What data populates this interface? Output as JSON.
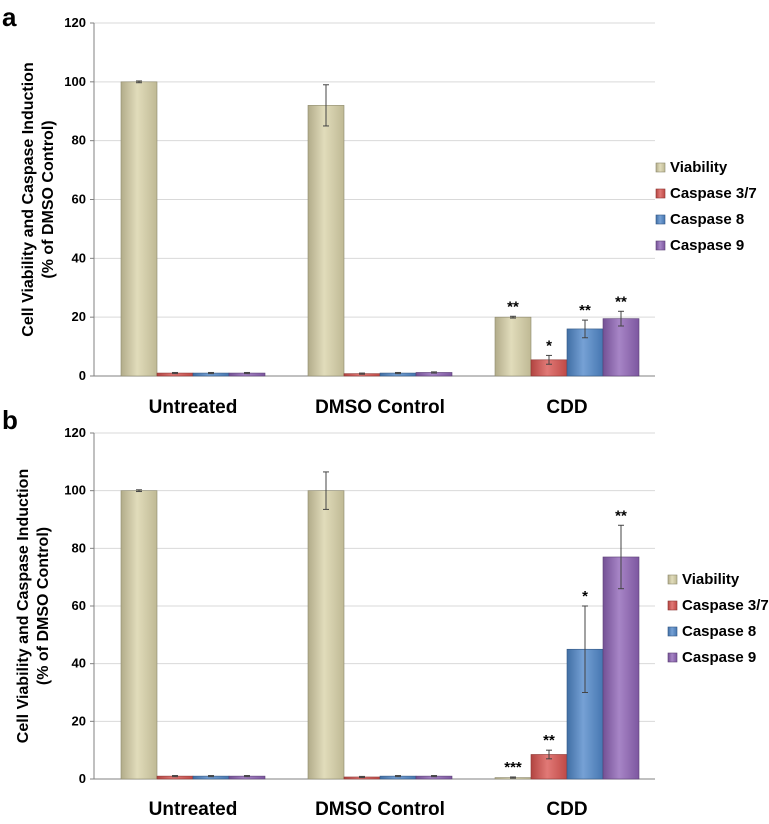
{
  "colors": {
    "viability": "#d9d2a8",
    "caspase37": "#d9534f",
    "caspase8": "#4f87c9",
    "caspase9": "#8e63b6"
  },
  "chart_data": [
    {
      "panel": "a",
      "type": "bar",
      "ylabel_line1": "Cell Viability and Caspase Induction",
      "ylabel_line2": "(% of DMSO Control)",
      "ylim": [
        0,
        120
      ],
      "yticks": [
        "0",
        "20",
        "40",
        "60",
        "80",
        "100",
        "120"
      ],
      "grid": true,
      "legend_position": "right",
      "categories": [
        "Untreated",
        "DMSO Control",
        "CDD"
      ],
      "series": [
        {
          "name": "Viability",
          "values": [
            100,
            92,
            20
          ],
          "errors": [
            0.3,
            7,
            0.3
          ],
          "sig": [
            "",
            "",
            "**"
          ]
        },
        {
          "name": "Caspase 3/7",
          "values": [
            1,
            0.8,
            5.5
          ],
          "errors": [
            0.2,
            0.2,
            1.5
          ],
          "sig": [
            "",
            "",
            "*"
          ]
        },
        {
          "name": "Caspase 8",
          "values": [
            1,
            1,
            16
          ],
          "errors": [
            0.2,
            0.2,
            3
          ],
          "sig": [
            "",
            "",
            "**"
          ]
        },
        {
          "name": "Caspase 9",
          "values": [
            1,
            1.2,
            19.5
          ],
          "errors": [
            0.2,
            0.2,
            2.5
          ],
          "sig": [
            "",
            "",
            "**"
          ]
        }
      ]
    },
    {
      "panel": "b",
      "type": "bar",
      "ylabel_line1": "Cell Viability and Caspase Induction",
      "ylabel_line2": "(% of DMSO Control)",
      "ylim": [
        0,
        120
      ],
      "yticks": [
        "0",
        "20",
        "40",
        "60",
        "80",
        "100",
        "120"
      ],
      "grid": true,
      "legend_position": "right",
      "categories": [
        "Untreated",
        "DMSO Control",
        "CDD"
      ],
      "series": [
        {
          "name": "Viability",
          "values": [
            100,
            100,
            0.5
          ],
          "errors": [
            0.3,
            6.5,
            0.2
          ],
          "sig": [
            "",
            "",
            "***"
          ]
        },
        {
          "name": "Caspase 3/7",
          "values": [
            1,
            0.7,
            8.5
          ],
          "errors": [
            0.2,
            0.2,
            1.5
          ],
          "sig": [
            "",
            "",
            "**"
          ]
        },
        {
          "name": "Caspase 8",
          "values": [
            1,
            1,
            45
          ],
          "errors": [
            0.2,
            0.2,
            15
          ],
          "sig": [
            "",
            "",
            "*"
          ]
        },
        {
          "name": "Caspase 9",
          "values": [
            1,
            1,
            77
          ],
          "errors": [
            0.2,
            0.2,
            11
          ],
          "sig": [
            "",
            "",
            "**"
          ]
        }
      ]
    }
  ]
}
